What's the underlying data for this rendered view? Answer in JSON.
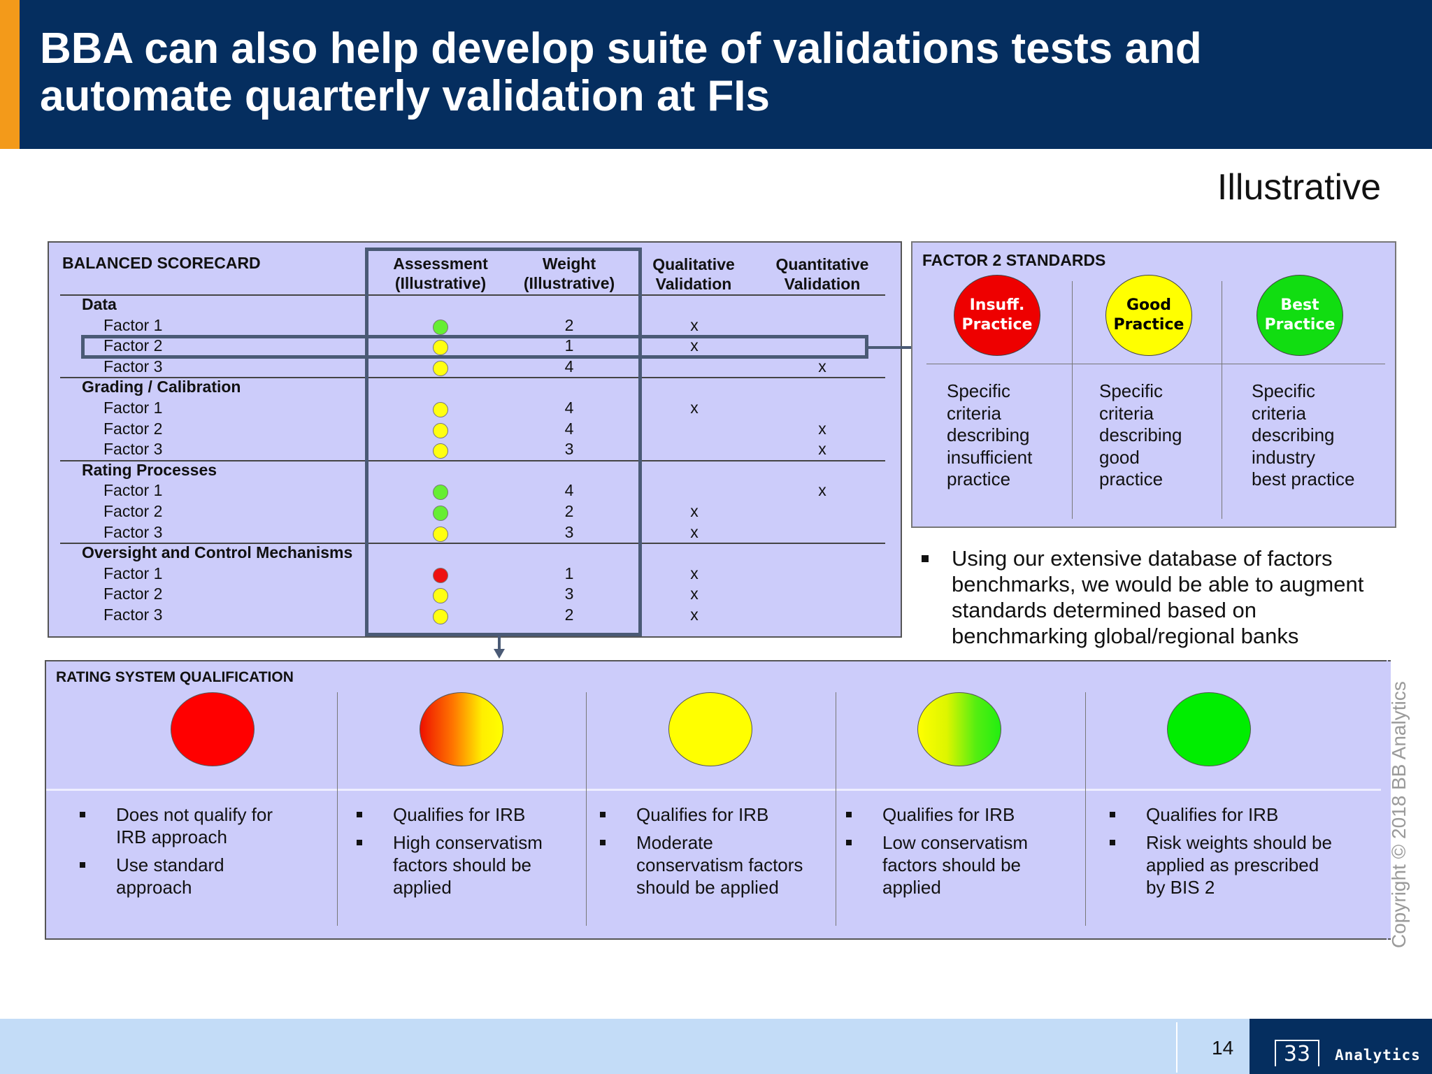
{
  "header": {
    "title_line1": "BBA can also help develop suite of validations tests and",
    "title_line2": "automate quarterly validation at FIs"
  },
  "tag": "Illustrative",
  "scorecard": {
    "title": "BALANCED SCORECARD",
    "columns": {
      "assessment": [
        "Assessment",
        "(Illustrative)"
      ],
      "weight": [
        "Weight",
        "(Illustrative)"
      ],
      "qualitative": [
        "Qualitative",
        "Validation"
      ],
      "quantitative": [
        "Quantitative",
        "Validation"
      ]
    },
    "sections": [
      {
        "name": "Data",
        "rows": [
          {
            "factor": "Factor 1",
            "assessment": "green",
            "weight": "2",
            "qualitative": "x",
            "quantitative": ""
          },
          {
            "factor": "Factor 2",
            "assessment": "yellow",
            "weight": "1",
            "qualitative": "x",
            "quantitative": ""
          },
          {
            "factor": "Factor 3",
            "assessment": "yellow",
            "weight": "4",
            "qualitative": "",
            "quantitative": "x"
          }
        ]
      },
      {
        "name": "Grading / Calibration",
        "rows": [
          {
            "factor": "Factor 1",
            "assessment": "yellow",
            "weight": "4",
            "qualitative": "x",
            "quantitative": ""
          },
          {
            "factor": "Factor 2",
            "assessment": "yellow",
            "weight": "4",
            "qualitative": "",
            "quantitative": "x"
          },
          {
            "factor": "Factor 3",
            "assessment": "yellow",
            "weight": "3",
            "qualitative": "",
            "quantitative": "x"
          }
        ]
      },
      {
        "name": "Rating Processes",
        "rows": [
          {
            "factor": "Factor 1",
            "assessment": "green",
            "weight": "4",
            "qualitative": "",
            "quantitative": "x"
          },
          {
            "factor": "Factor 2",
            "assessment": "green",
            "weight": "2",
            "qualitative": "x",
            "quantitative": ""
          },
          {
            "factor": "Factor 3",
            "assessment": "yellow",
            "weight": "3",
            "qualitative": "x",
            "quantitative": ""
          }
        ]
      },
      {
        "name": "Oversight and Control Mechanisms",
        "rows": [
          {
            "factor": "Factor 1",
            "assessment": "red",
            "weight": "1",
            "qualitative": "x",
            "quantitative": ""
          },
          {
            "factor": "Factor 2",
            "assessment": "yellow",
            "weight": "3",
            "qualitative": "x",
            "quantitative": ""
          },
          {
            "factor": "Factor 3",
            "assessment": "yellow",
            "weight": "2",
            "qualitative": "x",
            "quantitative": ""
          }
        ]
      }
    ],
    "status_colors": {
      "green": "#66ee33",
      "yellow": "#ffff11",
      "red": "#ee1111"
    }
  },
  "standards": {
    "title": "FACTOR 2 STANDARDS",
    "items": [
      {
        "label_line1": "Insuff.",
        "label_line2": "Practice",
        "color": "#ee0000",
        "text_color": "#ffffff",
        "desc": [
          "Specific",
          "criteria",
          "describing",
          "insufficient",
          "practice"
        ]
      },
      {
        "label_line1": "Good",
        "label_line2": "Practice",
        "color": "#ffff00",
        "text_color": "#000000",
        "desc": [
          "Specific",
          "criteria",
          "describing",
          "good",
          "practice"
        ]
      },
      {
        "label_line1": "Best",
        "label_line2": "Practice",
        "color": "#11dd11",
        "text_color": "#ffffff",
        "desc": [
          "Specific",
          "criteria",
          "describing",
          "industry",
          "best practice"
        ]
      }
    ]
  },
  "note": {
    "lines": [
      "Using our extensive database of factors",
      "benchmarks, we would be able to augment",
      "standards determined based on",
      "benchmarking global/regional banks"
    ]
  },
  "rating": {
    "title": "RATING SYSTEM QUALIFICATION",
    "columns": [
      {
        "fill": "red",
        "bullets": [
          [
            "Does not qualify for",
            "IRB approach"
          ],
          [
            "Use standard",
            "approach"
          ]
        ]
      },
      {
        "fill": "red-yellow",
        "bullets": [
          [
            "Qualifies for IRB"
          ],
          [
            "High conservatism",
            "factors should be",
            "applied"
          ]
        ]
      },
      {
        "fill": "yellow",
        "bullets": [
          [
            "Qualifies for IRB"
          ],
          [
            "Moderate",
            "conservatism factors",
            "should be applied"
          ]
        ]
      },
      {
        "fill": "yellow-green",
        "bullets": [
          [
            "Qualifies for IRB"
          ],
          [
            "Low conservatism",
            "factors should be",
            "applied"
          ]
        ]
      },
      {
        "fill": "green",
        "bullets": [
          [
            "Qualifies for IRB"
          ],
          [
            "Risk weights should be",
            "applied as prescribed",
            "by BIS 2"
          ]
        ]
      }
    ]
  },
  "copyright": "Copyright © 2018 BB Analytics",
  "footer": {
    "page_number": "14",
    "logo_mark": "33",
    "logo_text": "Analytics"
  }
}
